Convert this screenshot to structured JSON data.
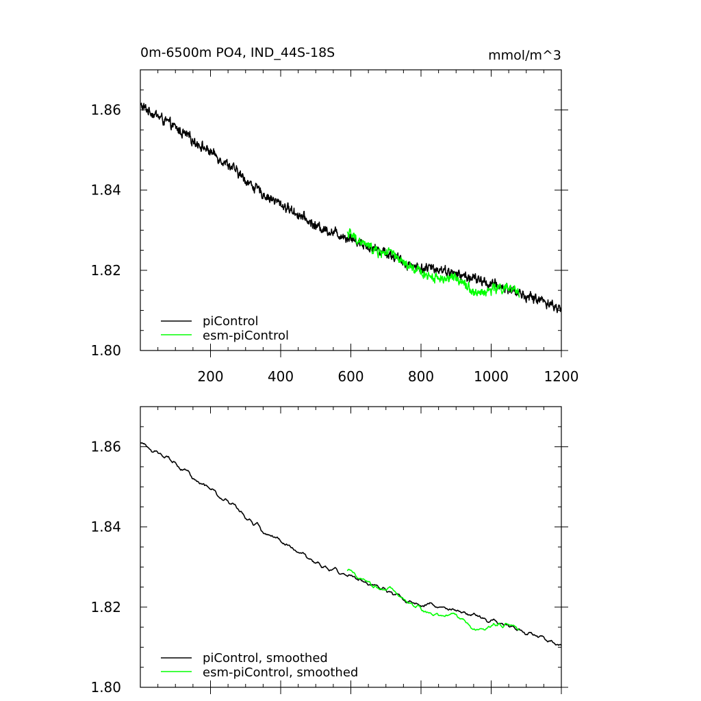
{
  "chart_data": [
    {
      "type": "line",
      "title": "0m-6500m PO4, IND_44S-18S",
      "units": "mmol/m^3",
      "xlim": [
        0,
        1200
      ],
      "ylim": [
        1.8,
        1.87
      ],
      "xticks": [
        200,
        400,
        600,
        800,
        1000,
        1200
      ],
      "yticks": [
        1.8,
        1.82,
        1.84,
        1.86
      ],
      "xtick_labels": [
        "200",
        "400",
        "600",
        "800",
        "1000",
        "1200"
      ],
      "ytick_labels": [
        "1.80",
        "1.82",
        "1.84",
        "1.86"
      ],
      "legend_position": "bottom-left",
      "series": [
        {
          "name": "piControl",
          "color": "#000000",
          "x": [
            1,
            50,
            100,
            150,
            200,
            250,
            300,
            350,
            400,
            450,
            500,
            550,
            600,
            650,
            700,
            750,
            800,
            850,
            900,
            950,
            1000,
            1050,
            1100,
            1150,
            1200
          ],
          "y": [
            1.861,
            1.8585,
            1.8555,
            1.8525,
            1.8495,
            1.8465,
            1.8425,
            1.839,
            1.8365,
            1.834,
            1.831,
            1.8295,
            1.828,
            1.826,
            1.8245,
            1.822,
            1.8205,
            1.8205,
            1.819,
            1.818,
            1.8165,
            1.8155,
            1.8135,
            1.8125,
            1.81
          ]
        },
        {
          "name": "esm-piControl",
          "color": "#00ff00",
          "x": [
            590,
            620,
            650,
            680,
            710,
            740,
            770,
            800,
            830,
            860,
            890,
            920,
            950,
            980,
            1010,
            1040,
            1080
          ],
          "y": [
            1.8295,
            1.8275,
            1.826,
            1.8245,
            1.8245,
            1.8225,
            1.8205,
            1.8195,
            1.8185,
            1.818,
            1.818,
            1.8175,
            1.8145,
            1.8145,
            1.8155,
            1.8155,
            1.8145
          ]
        }
      ]
    },
    {
      "type": "line",
      "title": "",
      "xlim": [
        0,
        1200
      ],
      "ylim": [
        1.8,
        1.87
      ],
      "xticks": [
        200,
        400,
        600,
        800,
        1000,
        1200
      ],
      "yticks": [
        1.8,
        1.82,
        1.84,
        1.86
      ],
      "ytick_labels": [
        "1.80",
        "1.82",
        "1.84",
        "1.86"
      ],
      "legend_position": "bottom-left",
      "series": [
        {
          "name": "piControl, smoothed",
          "color": "#000000",
          "x": [
            1,
            50,
            100,
            150,
            200,
            250,
            300,
            350,
            400,
            450,
            500,
            550,
            600,
            650,
            700,
            750,
            800,
            850,
            900,
            950,
            1000,
            1050,
            1100,
            1150,
            1200
          ],
          "y": [
            1.861,
            1.8585,
            1.8555,
            1.8525,
            1.8495,
            1.8465,
            1.8425,
            1.839,
            1.8365,
            1.834,
            1.831,
            1.8295,
            1.828,
            1.826,
            1.8245,
            1.822,
            1.8205,
            1.8205,
            1.819,
            1.818,
            1.8165,
            1.8155,
            1.8135,
            1.8125,
            1.81
          ]
        },
        {
          "name": "esm-piControl, smoothed",
          "color": "#00ff00",
          "x": [
            590,
            620,
            650,
            680,
            710,
            740,
            770,
            800,
            830,
            860,
            890,
            920,
            950,
            980,
            1010,
            1040,
            1080
          ],
          "y": [
            1.8295,
            1.8275,
            1.826,
            1.8245,
            1.8245,
            1.8225,
            1.8205,
            1.8195,
            1.8185,
            1.818,
            1.818,
            1.8175,
            1.8145,
            1.8145,
            1.8155,
            1.8155,
            1.8145
          ]
        }
      ]
    }
  ]
}
